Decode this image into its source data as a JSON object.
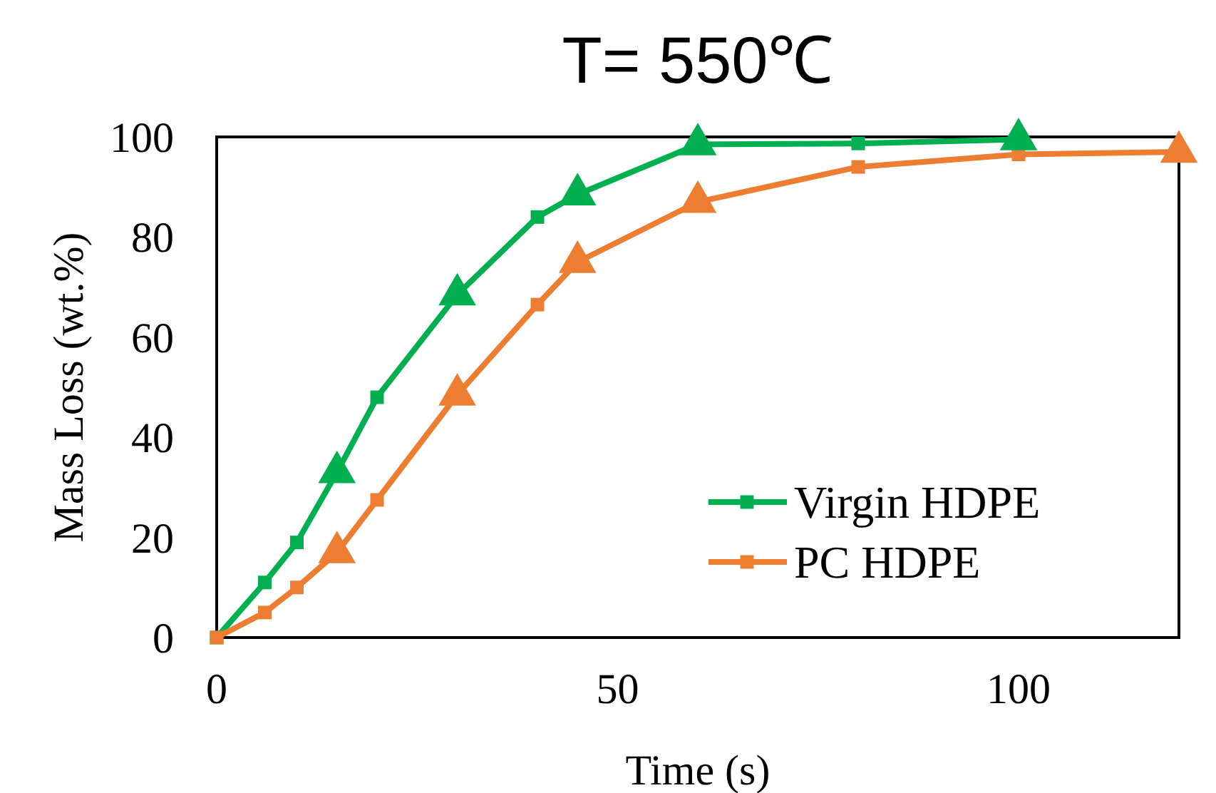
{
  "chart_data": {
    "type": "line",
    "title": "T= 550℃",
    "xlabel": "Time (s)",
    "ylabel": "Mass Loss (wt.%)",
    "xlim": [
      0,
      120
    ],
    "xticks": [
      0,
      50,
      100
    ],
    "ylim": [
      0,
      100
    ],
    "yticks": [
      0,
      20,
      40,
      60,
      80,
      100
    ],
    "grid": false,
    "legend": "bottom right",
    "series": [
      {
        "name": "Virgin HDPE",
        "marker": "square",
        "color": "#00b050",
        "x": [
          0,
          6,
          10,
          15,
          20,
          30,
          40,
          45,
          60,
          80,
          100
        ],
        "values": [
          0,
          11,
          19,
          33,
          48,
          68.5,
          84,
          88.5,
          98.5,
          98.7,
          99.5
        ]
      },
      {
        "name": "PC HDPE",
        "marker": "square",
        "color": "#ed7d31",
        "x": [
          0,
          6,
          10,
          15,
          20,
          30,
          40,
          45,
          60,
          80,
          100,
          120
        ],
        "values": [
          0,
          5,
          10,
          17,
          27.5,
          48.5,
          66.5,
          75,
          87,
          94,
          96.5,
          97
        ]
      },
      {
        "type": "scatter",
        "marker": "triangle",
        "color": "#00b050",
        "x": [
          15,
          30,
          45,
          60,
          100
        ],
        "values": [
          33,
          68.5,
          88.5,
          98.5,
          99.5
        ]
      },
      {
        "type": "scatter",
        "marker": "triangle",
        "color": "#ed7d31",
        "x": [
          15,
          30,
          45,
          60,
          120
        ],
        "values": [
          17,
          48.5,
          75,
          87,
          97
        ]
      }
    ]
  }
}
